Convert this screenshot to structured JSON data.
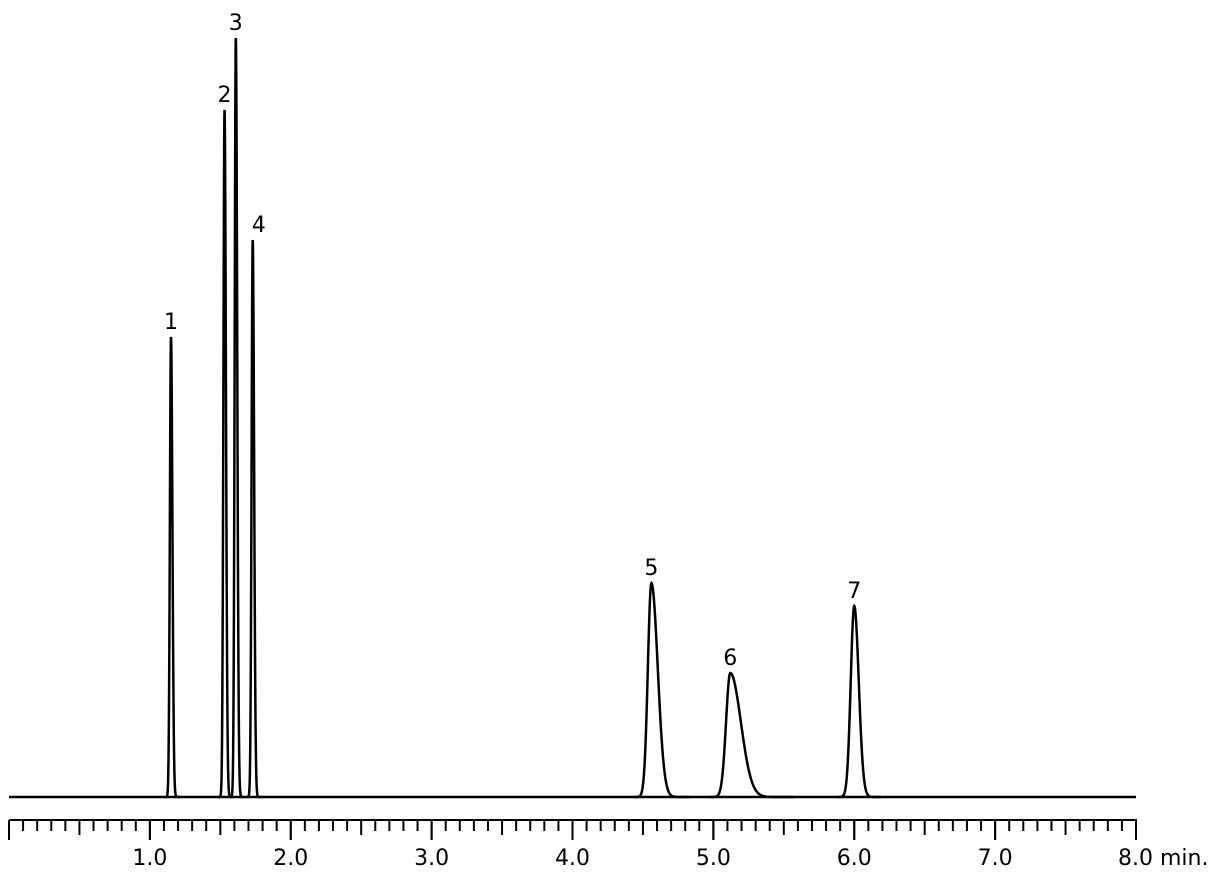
{
  "chart_data": {
    "type": "chromatogram",
    "peaks": {
      "labels": [
        "1",
        "2",
        "3",
        "4",
        "5",
        "6",
        "7"
      ],
      "x": [
        1.15,
        1.53,
        1.61,
        1.73,
        4.56,
        5.12,
        6.0
      ],
      "heights": [
        460,
        687,
        759,
        557,
        214,
        124,
        191
      ],
      "width_front": [
        0.008,
        0.008,
        0.008,
        0.008,
        0.025,
        0.03,
        0.025
      ],
      "width_back": [
        0.01,
        0.01,
        0.01,
        0.01,
        0.045,
        0.075,
        0.032
      ]
    },
    "color": "#000000",
    "xlim": [
      0,
      8
    ],
    "ylim": [
      0,
      800
    ],
    "xticks": [
      {
        "value": 1,
        "label": "1.0"
      },
      {
        "value": 2,
        "label": "2.0"
      },
      {
        "value": 3,
        "label": "3.0"
      },
      {
        "value": 4,
        "label": "4.0"
      },
      {
        "value": 5,
        "label": "5.0"
      },
      {
        "value": 6,
        "label": "6.0"
      },
      {
        "value": 7,
        "label": "7.0"
      },
      {
        "value": 8,
        "label": "8.0 min."
      }
    ]
  }
}
